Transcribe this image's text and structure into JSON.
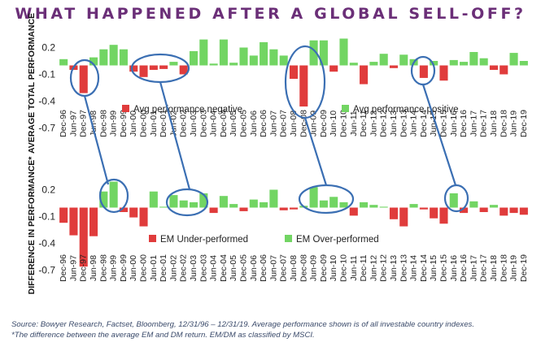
{
  "title": "WHAT HAPPENED AFTER A GLOBAL SELL-OFF?",
  "source_line_1": "Source: Bowyer Research, Factset, Bloomberg, 12/31/96 – 12/31/19. Average performance shown is of all investable country indexes.",
  "source_line_2": "*The difference between the average EM and DM return. EM/DM as classified by MSCI.",
  "colors": {
    "negative": "#e03c3c",
    "positive": "#72d563",
    "highlight": "#3b6fb3",
    "title": "#6b2f78"
  },
  "chart_data": [
    {
      "type": "bar",
      "ylabel": "AVERAGE TOTAL PERFORMANCE",
      "yticks": [
        0.2,
        -0.1,
        -0.4,
        -0.7
      ],
      "ylim": [
        -0.7,
        0.3
      ],
      "categories": [
        "Dec-96",
        "Jun-97",
        "Dec-97",
        "Jun-98",
        "Dec-98",
        "Jun-99",
        "Dec-99",
        "Jun-00",
        "Dec-00",
        "Jun-01",
        "Dec-01",
        "Jun-02",
        "Dec-02",
        "Jun-03",
        "Dec-03",
        "Jun-04",
        "Dec-04",
        "Jun-05",
        "Dec-05",
        "Jun-06",
        "Dec-06",
        "Jun-07",
        "Dec-07",
        "Jun-08",
        "Dec-08",
        "Jun-09",
        "Dec-09",
        "Jun-10",
        "Dec-10",
        "Jun-11",
        "Dec-11",
        "Jun-12",
        "Dec-12",
        "Jun-13",
        "Dec-13",
        "Jun-14",
        "Dec-14",
        "Jun-15",
        "Dec-15",
        "Jun-16",
        "Dec-16",
        "Jun-17",
        "Dec-17",
        "Jun-18",
        "Dec-18",
        "Jun-19",
        "Dec-19"
      ],
      "values": [
        0.07,
        -0.05,
        -0.31,
        0.09,
        0.18,
        0.23,
        0.18,
        -0.07,
        -0.13,
        -0.05,
        -0.04,
        0.04,
        -0.1,
        0.16,
        0.29,
        0.02,
        0.29,
        0.03,
        0.2,
        0.11,
        0.26,
        0.18,
        0.11,
        -0.15,
        -0.46,
        0.28,
        0.28,
        -0.07,
        0.3,
        0.03,
        -0.21,
        0.04,
        0.13,
        -0.03,
        0.12,
        0.07,
        -0.14,
        0.05,
        -0.17,
        0.06,
        0.04,
        0.15,
        0.08,
        -0.05,
        -0.1,
        0.14,
        0.05
      ],
      "legend": [
        {
          "label": "Avg performance negative",
          "color": "#e03c3c"
        },
        {
          "label": "Avg performance positive",
          "color": "#72d563"
        }
      ],
      "highlights": [
        "Jun-97 – Dec-97",
        "Jun-00 – Dec-01",
        "Jun-08 – Dec-08",
        "Dec-14 – Jun-15"
      ]
    },
    {
      "type": "bar",
      "ylabel": "DIFFERENCE IN PERFORMANCE*",
      "yticks": [
        0.2,
        -0.1,
        -0.4,
        -0.7
      ],
      "ylim": [
        -0.7,
        0.3
      ],
      "categories": [
        "Dec-96",
        "Jun-97",
        "Dec-97",
        "Jun-98",
        "Dec-98",
        "Jun-99",
        "Dec-99",
        "Jun-00",
        "Dec-00",
        "Jun-01",
        "Dec-01",
        "Jun-02",
        "Dec-02",
        "Jun-03",
        "Dec-03",
        "Jun-04",
        "Dec-04",
        "Jun-05",
        "Dec-05",
        "Jun-06",
        "Dec-06",
        "Jun-07",
        "Dec-07",
        "Jun-08",
        "Dec-08",
        "Jun-09",
        "Dec-09",
        "Jun-10",
        "Dec-10",
        "Jun-11",
        "Dec-11",
        "Jun-12",
        "Dec-12",
        "Jun-13",
        "Dec-13",
        "Jun-14",
        "Dec-14",
        "Jun-15",
        "Dec-15",
        "Jun-16",
        "Dec-16",
        "Jun-17",
        "Dec-17",
        "Jun-18",
        "Dec-18",
        "Jun-19",
        "Dec-19"
      ],
      "values": [
        -0.17,
        -0.31,
        -0.66,
        -0.32,
        0.18,
        0.29,
        -0.05,
        -0.11,
        -0.21,
        0.18,
        0.01,
        0.14,
        0.08,
        0.06,
        0.16,
        -0.06,
        0.13,
        0.04,
        -0.04,
        0.09,
        0.06,
        0.2,
        -0.03,
        -0.02,
        0.02,
        0.23,
        0.08,
        0.12,
        0.06,
        -0.09,
        0.06,
        0.03,
        0.01,
        -0.13,
        -0.21,
        0.04,
        -0.02,
        -0.12,
        -0.18,
        0.16,
        -0.06,
        0.07,
        -0.05,
        0.03,
        -0.09,
        -0.06,
        -0.08
      ],
      "legend": [
        {
          "label": "EM Under-performed",
          "color": "#e03c3c"
        },
        {
          "label": "EM Over-performed",
          "color": "#72d563"
        }
      ],
      "highlights": [
        "Dec-98 – Jun-99",
        "Dec-02 – Dec-03",
        "Jun-09 – Jun-10",
        "Jun-16"
      ]
    }
  ]
}
